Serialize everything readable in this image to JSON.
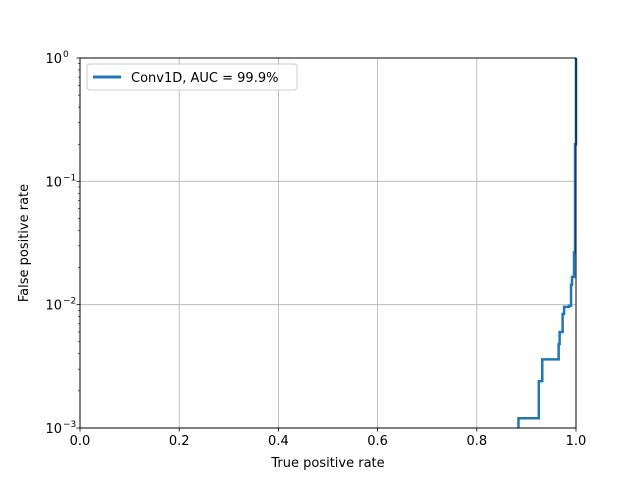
{
  "chart_data": {
    "type": "line",
    "title": "",
    "xlabel": "True positive rate",
    "ylabel": "False positive rate",
    "xlim": [
      0.0,
      1.0
    ],
    "ylim": [
      0.001,
      1.0
    ],
    "yscale": "log",
    "grid": true,
    "legend_placement": "top-left",
    "x_ticks": [
      0.0,
      0.2,
      0.4,
      0.6,
      0.8,
      1.0
    ],
    "x_tick_labels": [
      "0.0",
      "0.2",
      "0.4",
      "0.6",
      "0.8",
      "1.0"
    ],
    "y_ticks": [
      {
        "value": 0.001,
        "base": "10",
        "exp": "−3"
      },
      {
        "value": 0.01,
        "base": "10",
        "exp": "−2"
      },
      {
        "value": 0.1,
        "base": "10",
        "exp": "−1"
      },
      {
        "value": 1.0,
        "base": "10",
        "exp": "0"
      }
    ],
    "series": [
      {
        "name": "Conv1D, AUC = 99.9%",
        "color": "#1f77b4",
        "x": [
          0.884,
          0.884,
          0.925,
          0.925,
          0.932,
          0.932,
          0.965,
          0.965,
          0.967,
          0.967,
          0.973,
          0.973,
          0.976,
          0.976,
          0.986,
          0.986,
          0.99,
          0.99,
          0.992,
          0.992,
          0.996,
          0.996,
          0.998,
          0.998,
          1.0,
          1.0
        ],
        "y": [
          0.001,
          0.0012,
          0.0012,
          0.0024,
          0.0024,
          0.0036,
          0.0036,
          0.0048,
          0.0048,
          0.006,
          0.006,
          0.0084,
          0.0084,
          0.0096,
          0.0096,
          0.0098,
          0.0098,
          0.0145,
          0.0145,
          0.0168,
          0.0168,
          0.0265,
          0.0265,
          0.2,
          0.2,
          1.0
        ]
      }
    ]
  }
}
